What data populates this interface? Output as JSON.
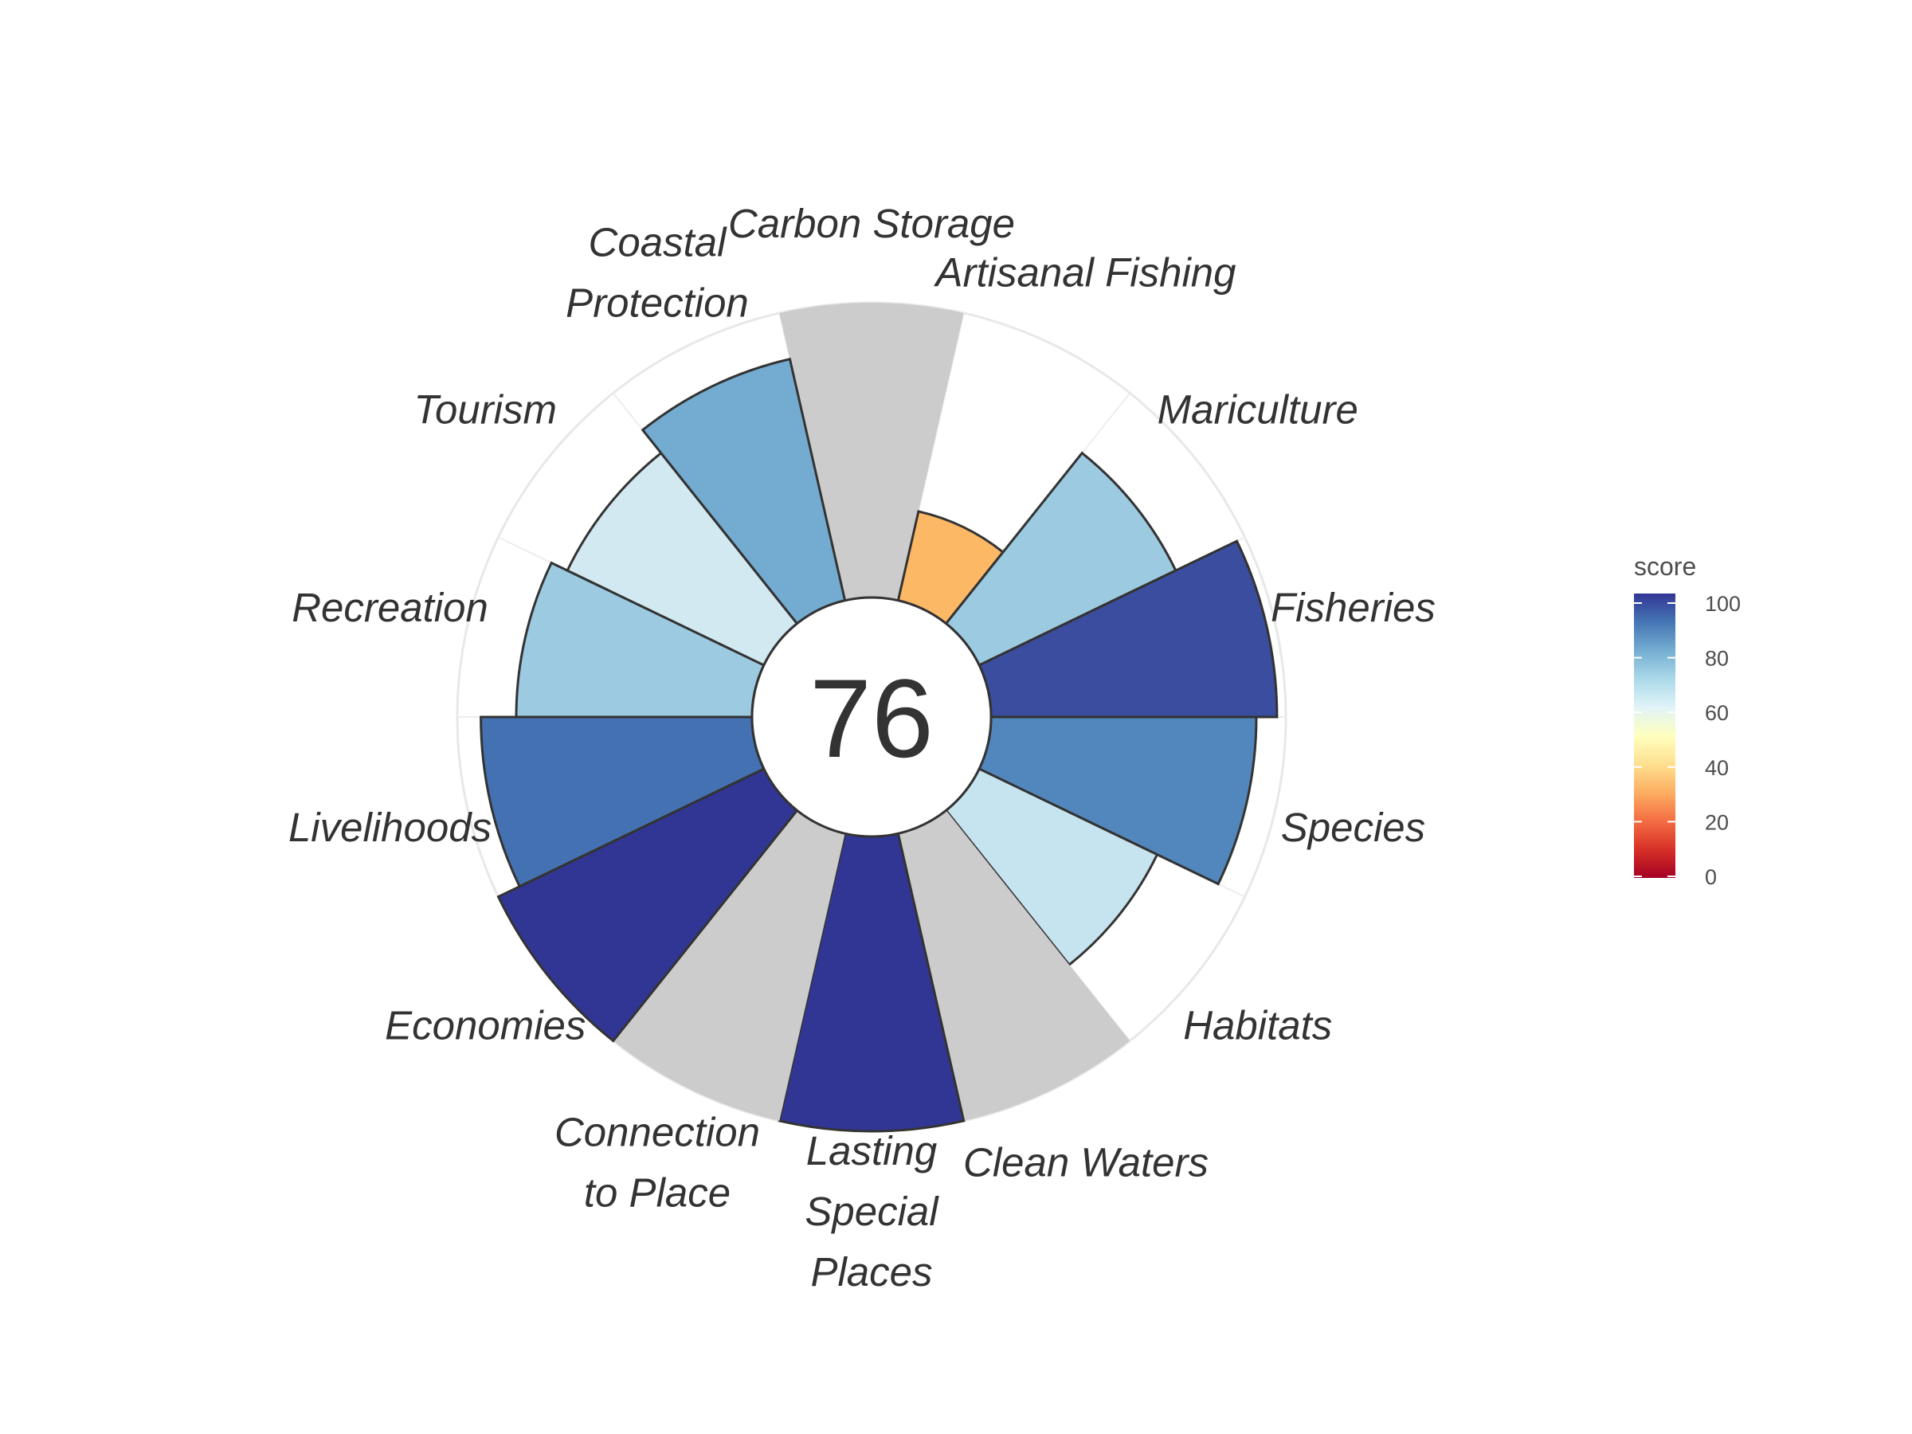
{
  "chart_data": {
    "type": "bar",
    "subtype": "polar-flower",
    "center_score": "76",
    "ylim": [
      0,
      100
    ],
    "grid": true,
    "petals": [
      {
        "label": [
          "Carbon Storage"
        ],
        "value": null,
        "color": "#cccccc"
      },
      {
        "label": [
          "Artisanal Fishing"
        ],
        "value": 31,
        "color": "#fdb865"
      },
      {
        "label": [
          "Mariculture"
        ],
        "value": 74,
        "color": "#9ccae1"
      },
      {
        "label": [
          "Fisheries"
        ],
        "value": 97,
        "color": "#3b4d9e"
      },
      {
        "label": [
          "Species"
        ],
        "value": 90,
        "color": "#5287bd"
      },
      {
        "label": [
          "Habitats"
        ],
        "value": 67,
        "color": "#c6e4ef"
      },
      {
        "label": [
          "Clean Waters"
        ],
        "value": null,
        "color": "#cccccc"
      },
      {
        "label": [
          "Lasting",
          "Special",
          "Places"
        ],
        "value": 100,
        "color": "#313695"
      },
      {
        "label": [
          "Connection",
          "to Place"
        ],
        "value": null,
        "color": "#cccccc"
      },
      {
        "label": [
          "Economies"
        ],
        "value": 100,
        "color": "#313695"
      },
      {
        "label": [
          "Livelihoods"
        ],
        "value": 92,
        "color": "#4471b1"
      },
      {
        "label": [
          "Recreation"
        ],
        "value": 80,
        "color": "#9ccae1"
      },
      {
        "label": [
          "Tourism"
        ],
        "value": 74,
        "color": "#d2e9f2"
      },
      {
        "label": [
          "Coastal",
          "Protection"
        ],
        "value": 84,
        "color": "#74acd1"
      }
    ],
    "legend": {
      "title": "score",
      "position": "right",
      "ticks": [
        "100",
        "80",
        "60",
        "40",
        "20",
        "0"
      ],
      "colors": [
        "#a50026",
        "#d73027",
        "#f46d43",
        "#fdae61",
        "#fee090",
        "#ffffbf",
        "#e0f3f8",
        "#abd9e9",
        "#74add1",
        "#4575b4",
        "#313695"
      ]
    }
  }
}
